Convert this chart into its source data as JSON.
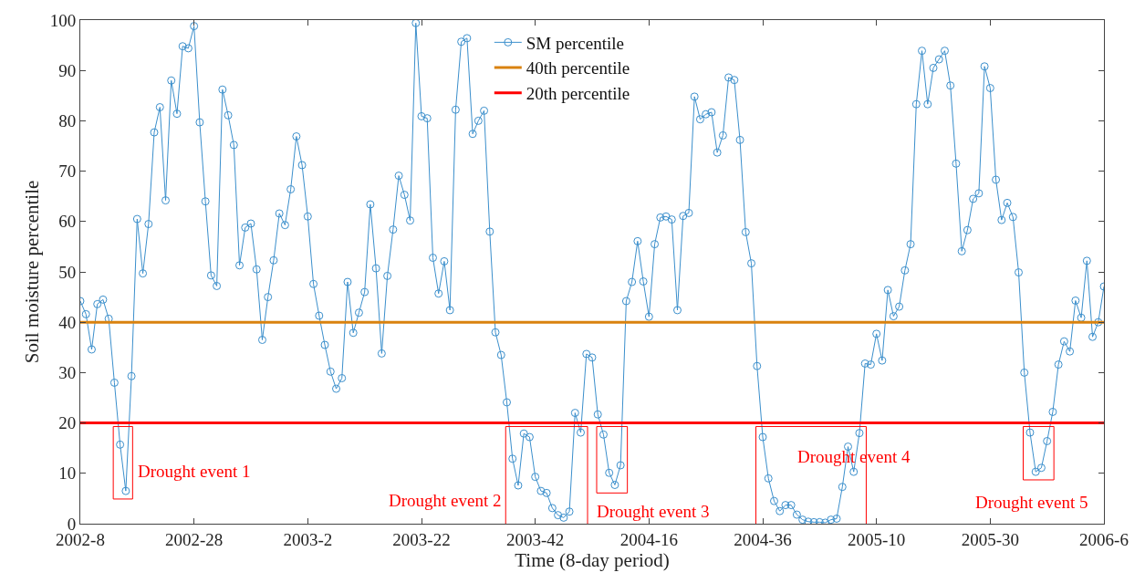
{
  "chart_data": {
    "type": "line",
    "xlabel": "Time (8-day period)",
    "ylabel": "Soil moisture percentile",
    "categories": [
      "2002-8",
      null,
      null,
      null,
      null,
      null,
      null,
      null,
      null,
      null,
      null,
      null,
      null,
      null,
      null,
      null,
      null,
      null,
      null,
      null,
      "2002-28",
      null,
      null,
      null,
      null,
      null,
      null,
      null,
      null,
      null,
      null,
      null,
      null,
      null,
      null,
      null,
      null,
      null,
      null,
      null,
      "2003-2",
      null,
      null,
      null,
      null,
      null,
      null,
      null,
      null,
      null,
      null,
      null,
      null,
      null,
      null,
      null,
      null,
      null,
      null,
      null,
      "2003-22",
      null,
      null,
      null,
      null,
      null,
      null,
      null,
      null,
      null,
      null,
      null,
      null,
      null,
      null,
      null,
      null,
      null,
      null,
      null,
      "2003-42",
      null,
      null,
      null,
      null,
      null,
      null,
      null,
      null,
      null,
      null,
      null,
      null,
      null,
      null,
      null,
      null,
      null,
      null,
      null,
      "2004-16",
      null,
      null,
      null,
      null,
      null,
      null,
      null,
      null,
      null,
      null,
      null,
      null,
      null,
      null,
      null,
      null,
      null,
      null,
      null,
      "2004-36",
      null,
      null,
      null,
      null,
      null,
      null,
      null,
      null,
      null,
      null,
      null,
      null,
      null,
      null,
      null,
      null,
      null,
      null,
      null,
      "2005-10",
      null,
      null,
      null,
      null,
      null,
      null,
      null,
      null,
      null,
      null,
      null,
      null,
      null,
      null,
      null,
      null,
      null,
      null,
      null,
      "2005-30",
      null,
      null,
      null,
      null,
      null,
      null,
      null,
      null,
      null,
      null,
      null,
      null,
      null,
      null,
      null,
      null,
      null,
      null,
      null,
      "2006-6"
    ],
    "series": [
      {
        "name": "SM percentile",
        "color": "#3b8fcc",
        "values": [
          44.2,
          41.6,
          34.6,
          43.6,
          44.5,
          40.7,
          28,
          15.7,
          6.5,
          29.3,
          60.5,
          49.7,
          59.5,
          77.7,
          82.7,
          64.2,
          88,
          81.4,
          94.8,
          94.4,
          98.8,
          79.7,
          64,
          49.3,
          47.2,
          86.2,
          81.1,
          75.2,
          51.3,
          58.8,
          59.6,
          50.5,
          36.5,
          45,
          52.3,
          61.6,
          59.3,
          66.4,
          76.9,
          71.2,
          61,
          47.6,
          41.3,
          35.5,
          30.2,
          26.8,
          28.9,
          48,
          37.9,
          41.9,
          46,
          63.4,
          50.7,
          33.8,
          49.2,
          58.4,
          69.1,
          65.3,
          60.2,
          99.4,
          80.9,
          80.5,
          52.8,
          45.7,
          52.1,
          42.4,
          82.2,
          95.7,
          96.4,
          77.4,
          80,
          82,
          58,
          38,
          33.5,
          24.1,
          12.9,
          7.6,
          17.9,
          17.2,
          9.3,
          6.5,
          6.1,
          3.1,
          1.7,
          1.2,
          2.4,
          22,
          18.1,
          33.7,
          33,
          21.7,
          17.7,
          10.1,
          7.7,
          11.6,
          44.2,
          48,
          56.1,
          48.1,
          41.1,
          55.5,
          60.8,
          61,
          60.4,
          42.4,
          61.1,
          61.7,
          84.8,
          80.3,
          81.3,
          81.7,
          73.7,
          77.1,
          88.6,
          88.1,
          76.2,
          57.9,
          51.7,
          31.3,
          17.2,
          9,
          4.5,
          2.5,
          3.7,
          3.7,
          1.8,
          0.8,
          0.4,
          0.3,
          0.3,
          0.2,
          0.8,
          1,
          7.3,
          15.3,
          10.3,
          18,
          31.8,
          31.6,
          37.7,
          32.4,
          46.4,
          41.2,
          43.1,
          50.3,
          55.5,
          83.3,
          93.9,
          83.3,
          90.5,
          92.2,
          93.9,
          87,
          71.5,
          54.1,
          58.3,
          64.5,
          65.6,
          90.8,
          86.5,
          68.3,
          60.3,
          63.7,
          60.9,
          49.9,
          30,
          18.1,
          10.3,
          11.1,
          16.4,
          22.2,
          31.6,
          36.2,
          34.2,
          44.3,
          40.9,
          52.2,
          37.1,
          40,
          47.1
        ]
      }
    ],
    "ref_lines": [
      {
        "axis": "y",
        "value": 40,
        "label": "40th percentile",
        "color": "#d9820f"
      },
      {
        "axis": "y",
        "value": 20,
        "label": "20th percentile",
        "color": "#ff0000"
      }
    ],
    "annotations": [
      "Drought event 1",
      "Drought event 2",
      "Drought event 3",
      "Drought event 4",
      "Drought event 5"
    ],
    "ylim": [
      0,
      100
    ],
    "yticks": [
      0,
      10,
      20,
      30,
      40,
      50,
      60,
      70,
      80,
      90,
      100
    ],
    "legend": "top",
    "marker": "circle",
    "line_style": "solid"
  }
}
